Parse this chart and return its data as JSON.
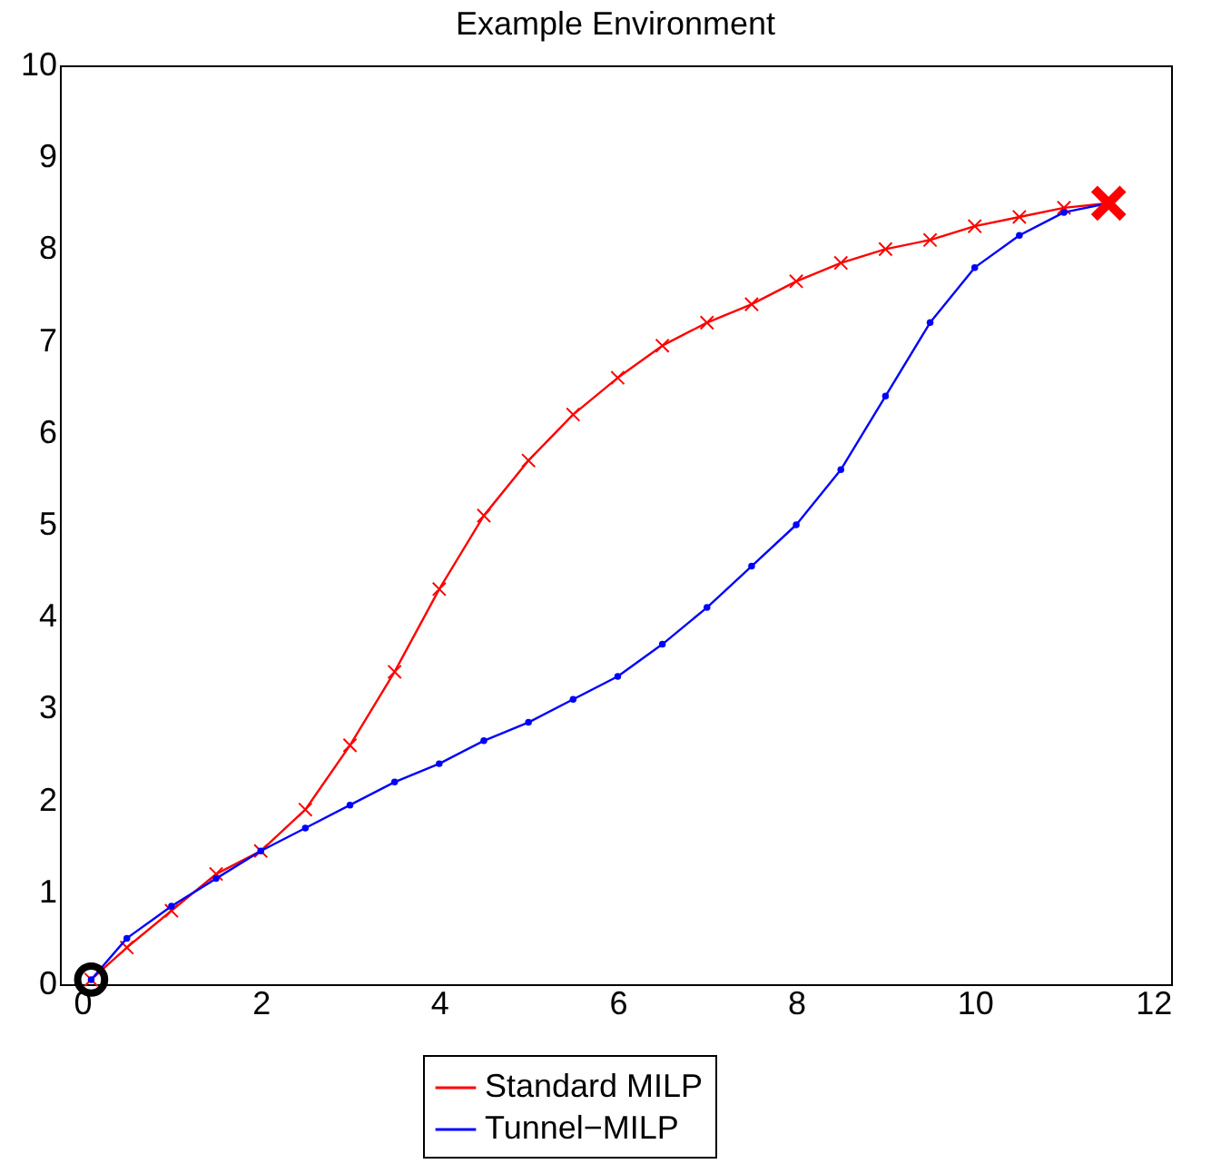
{
  "chart_data": {
    "type": "line",
    "title": "Example Environment",
    "xlim": [
      -0.25,
      12.2
    ],
    "ylim": [
      0,
      10
    ],
    "xticks": [
      0,
      2,
      4,
      6,
      8,
      10,
      12
    ],
    "yticks": [
      0,
      1,
      2,
      3,
      4,
      5,
      6,
      7,
      8,
      9,
      10
    ],
    "grid": false,
    "legend": "bottom",
    "line_style": "solid",
    "series": [
      {
        "name": "Standard MILP",
        "color": "#ff0000",
        "marker": "cross",
        "x": [
          0.1,
          0.5,
          1,
          1.5,
          2,
          2.5,
          3,
          3.5,
          4,
          4.5,
          5,
          5.5,
          6,
          6.5,
          7,
          7.5,
          8,
          8.5,
          9,
          9.5,
          10,
          10.5,
          11,
          11.5
        ],
        "values": [
          0.05,
          0.4,
          0.8,
          1.2,
          1.45,
          1.9,
          2.6,
          3.4,
          4.3,
          5.1,
          5.7,
          6.2,
          6.6,
          6.95,
          7.2,
          7.4,
          7.65,
          7.85,
          8.0,
          8.1,
          8.25,
          8.35,
          8.45,
          8.5
        ]
      },
      {
        "name": "Tunnel−MILP",
        "color": "#0000ff",
        "marker": "circle",
        "x": [
          0.1,
          0.5,
          1,
          1.5,
          2,
          2.5,
          3,
          3.5,
          4,
          4.5,
          5,
          5.5,
          6,
          6.5,
          7,
          7.5,
          8,
          8.5,
          9,
          9.5,
          10,
          10.5,
          11,
          11.5
        ],
        "values": [
          0.05,
          0.5,
          0.85,
          1.15,
          1.45,
          1.7,
          1.95,
          2.2,
          2.4,
          2.65,
          2.85,
          3.1,
          3.35,
          3.7,
          4.1,
          4.55,
          5.0,
          5.6,
          6.4,
          7.2,
          7.8,
          8.15,
          8.4,
          8.5
        ]
      },
      {
        "type": "scatter",
        "color": "#000000",
        "marker": "circle",
        "x": [
          0.1
        ],
        "values": [
          0.05
        ]
      },
      {
        "type": "scatter",
        "color": "#ff0000",
        "marker": "cross",
        "x": [
          11.5
        ],
        "values": [
          8.5
        ]
      }
    ]
  }
}
